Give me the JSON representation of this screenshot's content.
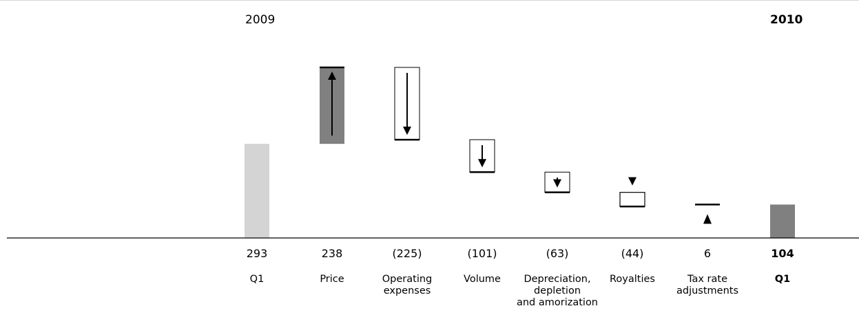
{
  "chart_data": {
    "type": "bar",
    "subtype": "waterfall",
    "start_label": "2009",
    "end_label": "2010",
    "categories": [
      "Q1",
      "Price",
      "Operating expenses",
      "Volume",
      "Depreciation, depletion and amorization",
      "Royalties",
      "Tax rate adjustments",
      "Q1"
    ],
    "category_lines": [
      [
        "Q1"
      ],
      [
        "Price"
      ],
      [
        "Operating",
        "expenses"
      ],
      [
        "Volume"
      ],
      [
        "Depreciation,",
        "depletion",
        "and amorization"
      ],
      [
        "Royalties"
      ],
      [
        "Tax rate",
        "adjustments"
      ],
      [
        "Q1"
      ]
    ],
    "values": [
      293,
      238,
      -225,
      -101,
      -63,
      -44,
      6,
      104
    ],
    "value_labels": [
      "293",
      "238",
      "(225)",
      "(101)",
      "(63)",
      "(44)",
      "6",
      "104"
    ],
    "bar_kinds": [
      "total",
      "delta",
      "delta",
      "delta",
      "delta",
      "delta",
      "delta",
      "total"
    ],
    "bold": [
      false,
      false,
      false,
      false,
      false,
      false,
      false,
      true
    ],
    "ylim": [
      0,
      531
    ],
    "legend": "none",
    "grid": false
  },
  "colors": {
    "start_total": "#d4d4d4",
    "end_total": "#808080",
    "increase_fill": "#808080",
    "decrease_fill": "#ffffff",
    "edge": "#000000",
    "axis": "#000000",
    "top_rule": "#d4d4d4"
  }
}
